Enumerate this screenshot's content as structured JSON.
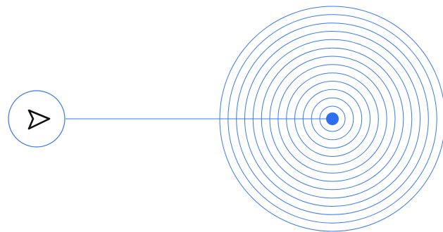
{
  "colors": {
    "background": "#ffffff",
    "line": "#3b7ae8",
    "dot": "#2f6fed",
    "icon": "#111111"
  },
  "icons": {
    "send_button": "send-icon"
  },
  "rings": {
    "count": 13
  }
}
